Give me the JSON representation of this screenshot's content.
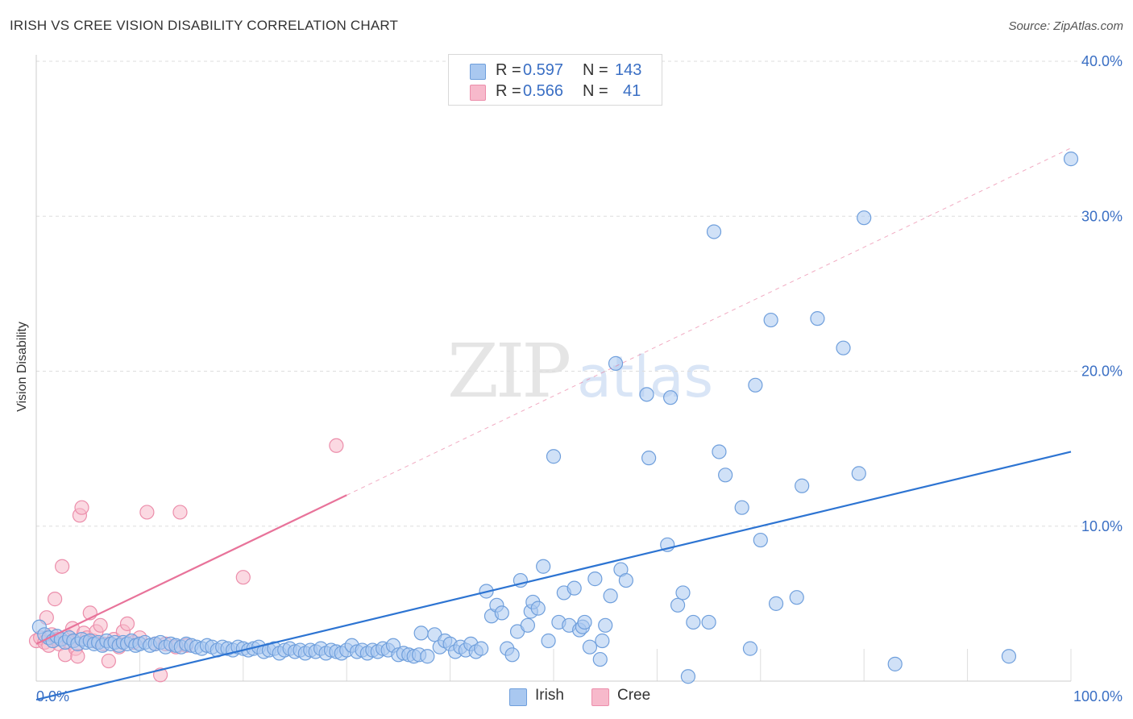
{
  "header": {
    "title": "IRISH VS CREE VISION DISABILITY CORRELATION CHART",
    "source": "Source: ZipAtlas.com"
  },
  "legend": {
    "irish": {
      "r_label": "R = ",
      "r_value": "0.597",
      "n_label": "N = ",
      "n_value": "143"
    },
    "cree": {
      "r_label": "R = ",
      "r_value": "0.566",
      "n_label": "N = ",
      "n_value": "41"
    }
  },
  "colors": {
    "irish_fill": "#a9c8f0",
    "irish_stroke": "#6f9fdc",
    "irish_line": "#2d74d2",
    "cree_fill": "#f7b9cb",
    "cree_stroke": "#ec8eab",
    "cree_line": "#e8739a",
    "grid": "#dddddd",
    "tick_text": "#3a6fc4"
  },
  "chart_data": {
    "type": "scatter",
    "ylabel": "Vision Disability",
    "xlim": [
      0,
      100
    ],
    "ylim": [
      0,
      40
    ],
    "x_tick_labels": [
      {
        "value": 0,
        "label": "0.0%"
      },
      {
        "value": 100,
        "label": "100.0%"
      }
    ],
    "y_tick_labels": [
      {
        "value": 10,
        "label": "10.0%"
      },
      {
        "value": 20,
        "label": "20.0%"
      },
      {
        "value": 30,
        "label": "30.0%"
      },
      {
        "value": 40,
        "label": "40.0%"
      }
    ],
    "grid": true,
    "legend_position": "bottom-center",
    "series": [
      {
        "name": "Irish",
        "points": [
          [
            0.3,
            3.5
          ],
          [
            0.8,
            3.0
          ],
          [
            1.2,
            2.8
          ],
          [
            1.6,
            2.6
          ],
          [
            2.0,
            2.9
          ],
          [
            2.4,
            2.7
          ],
          [
            2.8,
            2.5
          ],
          [
            3.2,
            2.8
          ],
          [
            3.6,
            2.6
          ],
          [
            4.0,
            2.4
          ],
          [
            4.4,
            2.7
          ],
          [
            4.8,
            2.5
          ],
          [
            5.2,
            2.6
          ],
          [
            5.6,
            2.4
          ],
          [
            6.0,
            2.5
          ],
          [
            6.4,
            2.3
          ],
          [
            6.8,
            2.6
          ],
          [
            7.2,
            2.4
          ],
          [
            7.6,
            2.5
          ],
          [
            8.0,
            2.3
          ],
          [
            8.4,
            2.5
          ],
          [
            8.8,
            2.4
          ],
          [
            9.2,
            2.6
          ],
          [
            9.6,
            2.3
          ],
          [
            10.0,
            2.4
          ],
          [
            10.5,
            2.5
          ],
          [
            11.0,
            2.3
          ],
          [
            11.5,
            2.4
          ],
          [
            12.0,
            2.5
          ],
          [
            12.5,
            2.2
          ],
          [
            13.0,
            2.4
          ],
          [
            13.5,
            2.3
          ],
          [
            14.0,
            2.2
          ],
          [
            14.5,
            2.4
          ],
          [
            15.0,
            2.3
          ],
          [
            15.5,
            2.2
          ],
          [
            16.0,
            2.1
          ],
          [
            16.5,
            2.3
          ],
          [
            17.0,
            2.2
          ],
          [
            17.5,
            2.0
          ],
          [
            18.0,
            2.2
          ],
          [
            18.5,
            2.1
          ],
          [
            19.0,
            2.0
          ],
          [
            19.5,
            2.2
          ],
          [
            20.0,
            2.1
          ],
          [
            20.5,
            2.0
          ],
          [
            21.0,
            2.1
          ],
          [
            21.5,
            2.2
          ],
          [
            22.0,
            1.9
          ],
          [
            22.5,
            2.0
          ],
          [
            23.0,
            2.1
          ],
          [
            23.5,
            1.8
          ],
          [
            24.0,
            2.0
          ],
          [
            24.5,
            2.1
          ],
          [
            25.0,
            1.9
          ],
          [
            25.5,
            2.0
          ],
          [
            26.0,
            1.8
          ],
          [
            26.5,
            2.0
          ],
          [
            27.0,
            1.9
          ],
          [
            27.5,
            2.1
          ],
          [
            28.0,
            1.8
          ],
          [
            28.5,
            2.0
          ],
          [
            29.0,
            1.9
          ],
          [
            29.5,
            1.8
          ],
          [
            30.0,
            2.0
          ],
          [
            30.5,
            2.3
          ],
          [
            31.0,
            1.9
          ],
          [
            31.5,
            2.0
          ],
          [
            32.0,
            1.8
          ],
          [
            32.5,
            2.0
          ],
          [
            33.0,
            1.9
          ],
          [
            33.5,
            2.1
          ],
          [
            34.0,
            2.0
          ],
          [
            34.5,
            2.3
          ],
          [
            35.0,
            1.7
          ],
          [
            35.5,
            1.8
          ],
          [
            36.0,
            1.7
          ],
          [
            36.5,
            1.6
          ],
          [
            37.0,
            1.7
          ],
          [
            37.2,
            3.1
          ],
          [
            37.8,
            1.6
          ],
          [
            38.5,
            3.0
          ],
          [
            39.0,
            2.2
          ],
          [
            39.5,
            2.6
          ],
          [
            40.0,
            2.4
          ],
          [
            40.5,
            1.9
          ],
          [
            41.0,
            2.2
          ],
          [
            41.5,
            2.0
          ],
          [
            42.0,
            2.4
          ],
          [
            42.5,
            1.9
          ],
          [
            43.0,
            2.1
          ],
          [
            43.5,
            5.8
          ],
          [
            44.0,
            4.2
          ],
          [
            44.5,
            4.9
          ],
          [
            45.0,
            4.4
          ],
          [
            45.5,
            2.1
          ],
          [
            46.0,
            1.7
          ],
          [
            46.5,
            3.2
          ],
          [
            46.8,
            6.5
          ],
          [
            47.5,
            3.6
          ],
          [
            47.8,
            4.5
          ],
          [
            48.0,
            5.1
          ],
          [
            48.5,
            4.7
          ],
          [
            49.0,
            7.4
          ],
          [
            49.5,
            2.6
          ],
          [
            50.0,
            14.5
          ],
          [
            50.5,
            3.8
          ],
          [
            51.0,
            5.7
          ],
          [
            51.5,
            3.6
          ],
          [
            52.0,
            6.0
          ],
          [
            52.5,
            3.3
          ],
          [
            52.8,
            3.5
          ],
          [
            53.0,
            3.8
          ],
          [
            53.5,
            2.2
          ],
          [
            54.0,
            6.6
          ],
          [
            54.5,
            1.4
          ],
          [
            54.7,
            2.6
          ],
          [
            55.0,
            3.6
          ],
          [
            55.5,
            5.5
          ],
          [
            56.0,
            20.5
          ],
          [
            56.5,
            7.2
          ],
          [
            57.0,
            6.5
          ],
          [
            59.0,
            18.5
          ],
          [
            59.2,
            14.4
          ],
          [
            61.0,
            8.8
          ],
          [
            61.3,
            18.3
          ],
          [
            62.0,
            4.9
          ],
          [
            62.5,
            5.7
          ],
          [
            63.0,
            0.3
          ],
          [
            63.5,
            3.8
          ],
          [
            65.0,
            3.8
          ],
          [
            65.5,
            29.0
          ],
          [
            66.0,
            14.8
          ],
          [
            66.6,
            13.3
          ],
          [
            68.2,
            11.2
          ],
          [
            69.0,
            2.1
          ],
          [
            69.5,
            19.1
          ],
          [
            70.0,
            9.1
          ],
          [
            71.0,
            23.3
          ],
          [
            71.5,
            5.0
          ],
          [
            73.5,
            5.4
          ],
          [
            74.0,
            12.6
          ],
          [
            75.5,
            23.4
          ],
          [
            78.0,
            21.5
          ],
          [
            79.5,
            13.4
          ],
          [
            80.0,
            29.9
          ],
          [
            83.0,
            1.1
          ],
          [
            94.0,
            1.6
          ],
          [
            100.0,
            33.7
          ]
        ],
        "trend": {
          "x0": 0,
          "y0": -1.2,
          "x1": 100,
          "y1": 14.8
        }
      },
      {
        "name": "Cree",
        "points": [
          [
            0.0,
            2.6
          ],
          [
            0.4,
            2.8
          ],
          [
            0.8,
            2.5
          ],
          [
            1.0,
            4.1
          ],
          [
            1.2,
            2.3
          ],
          [
            1.5,
            3.0
          ],
          [
            1.8,
            5.3
          ],
          [
            2.0,
            2.7
          ],
          [
            2.2,
            2.4
          ],
          [
            2.5,
            7.4
          ],
          [
            2.8,
            1.7
          ],
          [
            3.0,
            2.9
          ],
          [
            3.2,
            2.5
          ],
          [
            3.5,
            3.4
          ],
          [
            3.8,
            2.1
          ],
          [
            4.0,
            1.6
          ],
          [
            4.2,
            10.7
          ],
          [
            4.4,
            11.2
          ],
          [
            4.6,
            3.1
          ],
          [
            4.9,
            2.8
          ],
          [
            5.2,
            4.4
          ],
          [
            5.5,
            2.6
          ],
          [
            5.8,
            3.2
          ],
          [
            6.2,
            3.6
          ],
          [
            6.5,
            2.4
          ],
          [
            7.0,
            1.3
          ],
          [
            7.5,
            2.7
          ],
          [
            8.0,
            2.2
          ],
          [
            8.4,
            3.2
          ],
          [
            8.8,
            3.7
          ],
          [
            9.4,
            2.5
          ],
          [
            10.0,
            2.8
          ],
          [
            10.7,
            10.9
          ],
          [
            11.5,
            2.4
          ],
          [
            12.0,
            0.4
          ],
          [
            12.5,
            2.4
          ],
          [
            13.5,
            2.2
          ],
          [
            13.9,
            10.9
          ],
          [
            14.5,
            2.3
          ],
          [
            20.0,
            6.7
          ],
          [
            29.0,
            15.2
          ]
        ],
        "trend": {
          "x0": 0,
          "y0": 2.4,
          "x1": 30,
          "y1": 12.0
        },
        "trend_extension": {
          "x0": 30,
          "y0": 12.0,
          "x1": 100,
          "y1": 34.4
        }
      }
    ]
  }
}
